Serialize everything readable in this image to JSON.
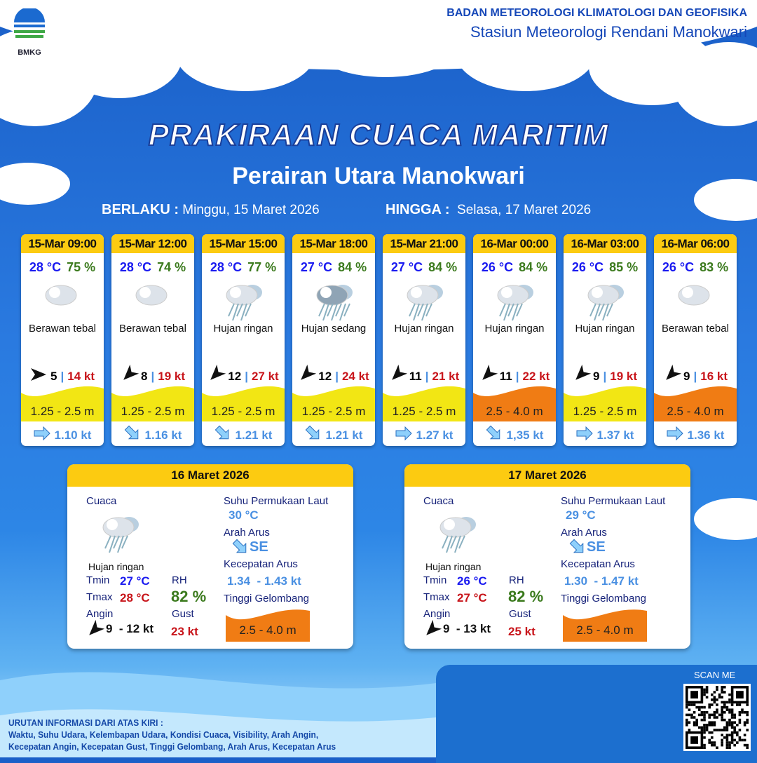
{
  "header": {
    "logo_text": "BMKG",
    "org": "BADAN METEOROLOGI KLIMATOLOGI DAN GEOFISIKA",
    "station": "Stasiun Meteorologi Rendani Manokwari"
  },
  "title": "PRAKIRAAN CUACA MARITIM",
  "subtitle": "Perairan Utara Manokwari",
  "validity": {
    "from_label": "BERLAKU :",
    "from": "Minggu, 15 Maret 2026",
    "to_label": "HINGGA :",
    "to": "Selasa, 17 Maret 2026"
  },
  "colors": {
    "header_yellow": "#fccb11",
    "wave_low": "#f2e614",
    "wave_mid": "#f07c14",
    "temp": "#1a1af0",
    "rh": "#3b7a1d",
    "gust": "#c8151b",
    "current": "#4a90e2"
  },
  "forecasts": [
    {
      "time": "15-Mar 09:00",
      "temp": "28 °C",
      "rh": "75 %",
      "icon": "cloudy-icon",
      "condition": "Berawan tebal",
      "wind_dir": "E",
      "wind": "5",
      "gust": "14 kt",
      "wave": "1.25 - 2.5 m",
      "wave_level": "low",
      "current_dir": "E",
      "current": "1.10 kt"
    },
    {
      "time": "15-Mar 12:00",
      "temp": "28 °C",
      "rh": "74 %",
      "icon": "cloudy-icon",
      "condition": "Berawan tebal",
      "wind_dir": "SW",
      "wind": "8",
      "gust": "19 kt",
      "wave": "1.25 - 2.5 m",
      "wave_level": "low",
      "current_dir": "SE",
      "current": "1.16 kt"
    },
    {
      "time": "15-Mar 15:00",
      "temp": "28 °C",
      "rh": "77 %",
      "icon": "light-rain-icon",
      "condition": "Hujan ringan",
      "wind_dir": "SW",
      "wind": "12",
      "gust": "27 kt",
      "wave": "1.25 - 2.5 m",
      "wave_level": "low",
      "current_dir": "SE",
      "current": "1.21 kt"
    },
    {
      "time": "15-Mar 18:00",
      "temp": "27 °C",
      "rh": "84 %",
      "icon": "moderate-rain-icon",
      "condition": "Hujan sedang",
      "wind_dir": "SW",
      "wind": "12",
      "gust": "24 kt",
      "wave": "1.25 - 2.5 m",
      "wave_level": "low",
      "current_dir": "SE",
      "current": "1.21 kt"
    },
    {
      "time": "15-Mar 21:00",
      "temp": "27 °C",
      "rh": "84 %",
      "icon": "light-rain-icon",
      "condition": "Hujan ringan",
      "wind_dir": "SW",
      "wind": "11",
      "gust": "21 kt",
      "wave": "1.25 - 2.5 m",
      "wave_level": "low",
      "current_dir": "E",
      "current": "1.27 kt"
    },
    {
      "time": "16-Mar 00:00",
      "temp": "26 °C",
      "rh": "84 %",
      "icon": "light-rain-icon",
      "condition": "Hujan ringan",
      "wind_dir": "SW",
      "wind": "11",
      "gust": "22 kt",
      "wave": "2.5 - 4.0 m",
      "wave_level": "mid",
      "current_dir": "SE",
      "current": "1,35 kt"
    },
    {
      "time": "16-Mar 03:00",
      "temp": "26 °C",
      "rh": "85 %",
      "icon": "light-rain-icon",
      "condition": "Hujan ringan",
      "wind_dir": "SW",
      "wind": "9",
      "gust": "19 kt",
      "wave": "1.25 - 2.5 m",
      "wave_level": "low",
      "current_dir": "E",
      "current": "1.37 kt"
    },
    {
      "time": "16-Mar 06:00",
      "temp": "26 °C",
      "rh": "83 %",
      "icon": "cloudy-icon",
      "condition": "Berawan tebal",
      "wind_dir": "SW",
      "wind": "9",
      "gust": "16 kt",
      "wave": "2.5 - 4.0 m",
      "wave_level": "mid",
      "current_dir": "E",
      "current": "1.36 kt"
    }
  ],
  "daily": [
    {
      "date": "16 Maret 2026",
      "weather_label": "Cuaca",
      "icon": "light-rain-icon",
      "condition": "Hujan ringan",
      "tmin_label": "Tmin",
      "tmin": "27 °C",
      "tmax_label": "Tmax",
      "tmax": "28 °C",
      "rh_label": "RH",
      "rh": "82 %",
      "wind_label": "Angin",
      "wind_dir": "SW",
      "wind": "9  - 12 kt",
      "gust_label": "Gust",
      "gust": "23 kt",
      "sst_label": "Suhu Permukaan Laut",
      "sst": "30 °C",
      "current_dir_label": "Arah Arus",
      "current_dir": "SE",
      "current_speed_label": "Kecepatan Arus",
      "current_speed": "1.34  - 1.43 kt",
      "wave_label": "Tinggi Gelombang",
      "wave": "2.5 - 4.0 m",
      "wave_level": "mid"
    },
    {
      "date": "17 Maret 2026",
      "weather_label": "Cuaca",
      "icon": "light-rain-icon",
      "condition": "Hujan ringan",
      "tmin_label": "Tmin",
      "tmin": "26 °C",
      "tmax_label": "Tmax",
      "tmax": "27 °C",
      "rh_label": "RH",
      "rh": "82 %",
      "wind_label": "Angin",
      "wind_dir": "SW",
      "wind": "9  - 13 kt",
      "gust_label": "Gust",
      "gust": "25 kt",
      "sst_label": "Suhu Permukaan Laut",
      "sst": "29 °C",
      "current_dir_label": "Arah Arus",
      "current_dir": "SE",
      "current_speed_label": "Kecepatan Arus",
      "current_speed": "1.30  - 1.47 kt",
      "wave_label": "Tinggi Gelombang",
      "wave": "2.5 - 4.0 m",
      "wave_level": "mid"
    }
  ],
  "footer": {
    "legend_title": "URUTAN INFORMASI DARI ATAS KIRI :",
    "legend_line1": "Waktu, Suhu Udara, Kelembapan Udara, Kondisi Cuaca, Visibility, Arah Angin,",
    "legend_line2": "Kecepatan Angin, Kecepatan Gust, Tinggi Gelombang, Arah Arus, Kecepatan Arus",
    "scan_label": "SCAN ME"
  }
}
